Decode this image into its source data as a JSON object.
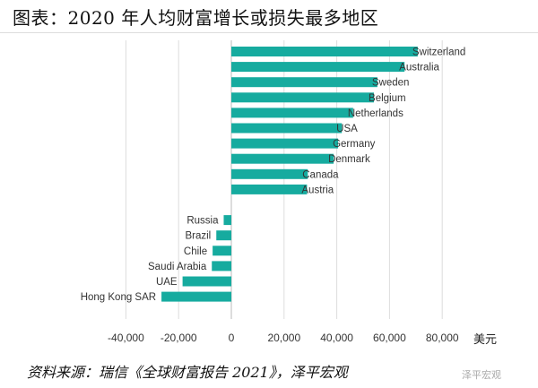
{
  "title": "图表：2020 年人均财富增长或损失最多地区",
  "source": "资料来源：瑞信《全球财富报告 2021》，泽平宏观",
  "watermark": "泽平宏观",
  "chart_data": {
    "type": "bar",
    "orientation": "horizontal",
    "categories": [
      "Switzerland",
      "Australia",
      "Sweden",
      "Belgium",
      "Netherlands",
      "USA",
      "Germany",
      "Denmark",
      "Canada",
      "Austria",
      "Russia",
      "Brazil",
      "Chile",
      "Saudi Arabia",
      "UAE",
      "Hong Kong SAR"
    ],
    "values": [
      70700,
      65700,
      55400,
      54100,
      46200,
      41900,
      40500,
      38800,
      29000,
      28700,
      -2900,
      -5700,
      -7100,
      -7400,
      -18500,
      -26500
    ],
    "xlim": [
      -40000,
      80000
    ],
    "xticks": [
      -40000,
      -20000,
      0,
      20000,
      40000,
      60000,
      80000
    ],
    "xtick_labels": [
      "-40,000",
      "-20,000",
      "0",
      "20,000",
      "40,000",
      "60,000",
      "80,000"
    ],
    "xlabel": "美元",
    "grid": "vertical",
    "color": "#16ab9f"
  }
}
